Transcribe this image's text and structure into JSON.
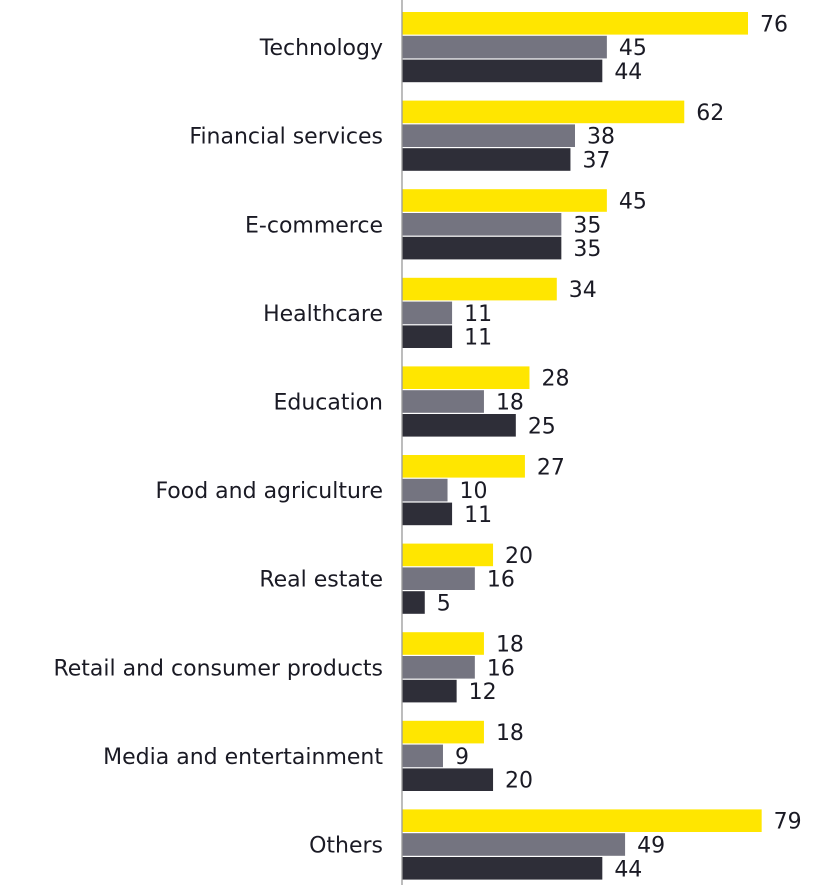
{
  "chart_data": {
    "type": "bar",
    "orientation": "horizontal",
    "categories": [
      "Technology",
      "Financial services",
      "E-commerce",
      "Healthcare",
      "Education",
      "Food and agriculture",
      "Real estate",
      "Retail and consumer products",
      "Media and entertainment",
      "Others"
    ],
    "series": [
      {
        "values": [
          76,
          62,
          45,
          34,
          28,
          27,
          20,
          18,
          18,
          79
        ],
        "color": "#ffe600"
      },
      {
        "values": [
          45,
          38,
          35,
          11,
          18,
          10,
          16,
          16,
          9,
          49
        ],
        "color": "#747480"
      },
      {
        "values": [
          44,
          37,
          35,
          11,
          25,
          11,
          5,
          12,
          20,
          44
        ],
        "color": "#2e2e38"
      }
    ],
    "xlim": [
      0,
      80
    ],
    "title": "",
    "xlabel": "",
    "ylabel": "",
    "legend": "none",
    "grid": false,
    "axis_color": "#999999"
  }
}
